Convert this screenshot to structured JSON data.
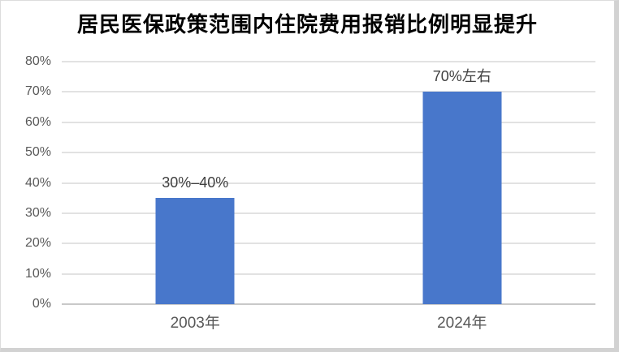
{
  "card": {
    "title": "居民医保政策范围内住院费用报销比例明显提升"
  },
  "chart_data": {
    "type": "bar",
    "title": "居民医保政策范围内住院费用报销比例明显提升",
    "categories": [
      "2003年",
      "2024年"
    ],
    "values": [
      35,
      70
    ],
    "data_labels": [
      "30%–40%",
      "70%左右"
    ],
    "xlabel": "",
    "ylabel": "",
    "ylim": [
      0,
      80
    ],
    "ytick_step": 10,
    "ytick_labels": [
      "0%",
      "10%",
      "20%",
      "30%",
      "40%",
      "50%",
      "60%",
      "70%",
      "80%"
    ],
    "grid": true,
    "legend": false,
    "colors": {
      "bar": "#4877CB",
      "gridline": "#e2e2e2",
      "axis_line": "#c9c9c9",
      "tick_label": "#595959",
      "data_label": "#404040",
      "title": "#000000",
      "background": "#ffffff"
    }
  }
}
